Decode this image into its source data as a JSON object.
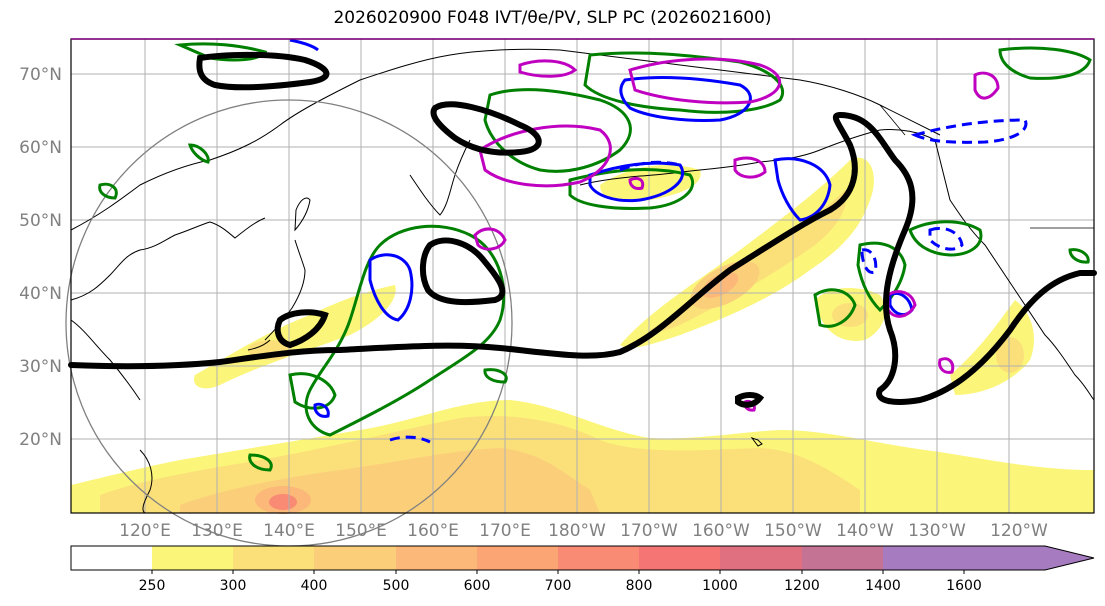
{
  "title": "2026020900 F048 IVT/θe/PV, SLP PC (2026021600)",
  "map": {
    "lat_labels": [
      "70°N",
      "60°N",
      "50°N",
      "40°N",
      "30°N",
      "20°N"
    ],
    "lon_labels": [
      "120°E",
      "130°E",
      "140°E",
      "150°E",
      "160°E",
      "170°E",
      "180°W",
      "170°W",
      "160°W",
      "150°W",
      "140°W",
      "130°W",
      "120°W"
    ]
  },
  "colorbar": {
    "ticks": [
      "250",
      "300",
      "400",
      "500",
      "600",
      "700",
      "800",
      "1000",
      "1200",
      "1400",
      "1600"
    ],
    "colors": [
      "#fbf67a",
      "#fbe07a",
      "#fbcf7a",
      "#fbb878",
      "#fba474",
      "#f98a73",
      "#f57474",
      "#e07080",
      "#c47394",
      "#a77bbf"
    ]
  },
  "legend_colors": {
    "slp_contour": "#000000",
    "theta_e": "#008000",
    "pv_blue": "#0000ff",
    "pv_magenta": "#c000c0",
    "circle": "#808080"
  }
}
